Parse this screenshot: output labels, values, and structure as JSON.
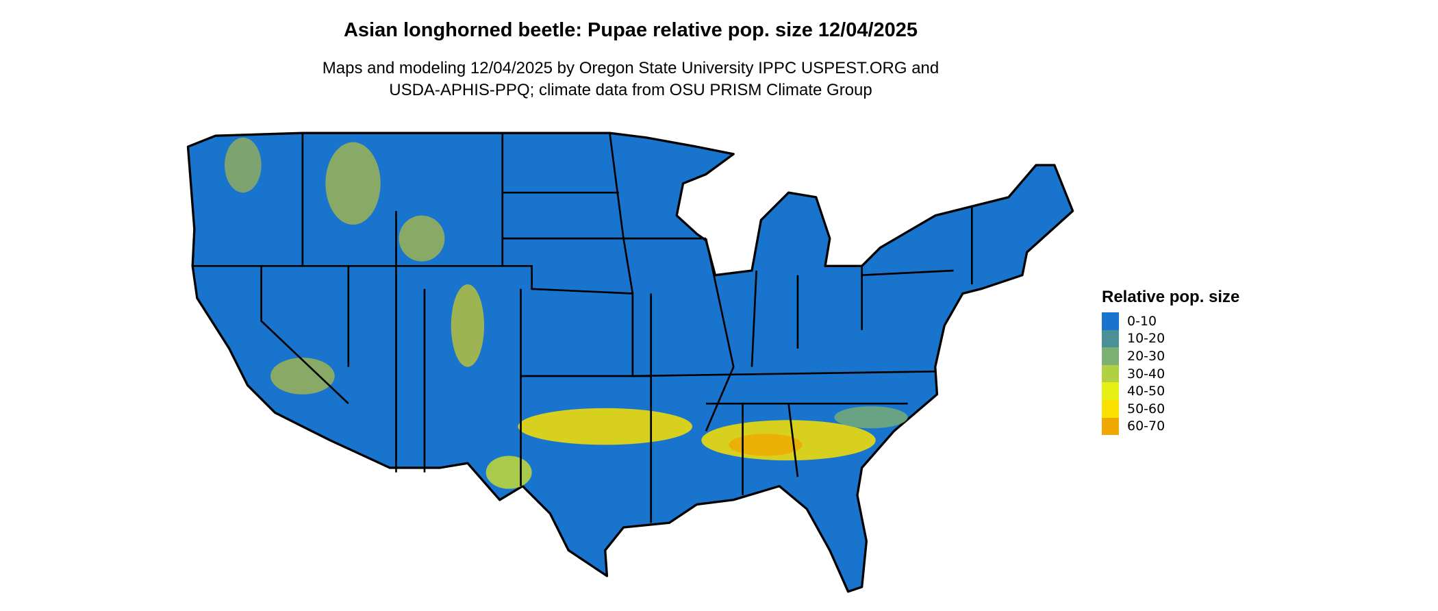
{
  "title": "Asian longhorned beetle: Pupae relative pop. size 12/04/2025",
  "subtitle_line1": "Maps and modeling 12/04/2025 by Oregon State University IPPC USPEST.ORG and",
  "subtitle_line2": "USDA-APHIS-PPQ; climate data from OSU PRISM Climate Group",
  "legend": {
    "title": "Relative pop. size",
    "items": [
      {
        "label": "0-10",
        "color": "#1874CD"
      },
      {
        "label": "10-20",
        "color": "#4A9099"
      },
      {
        "label": "20-30",
        "color": "#7DB072"
      },
      {
        "label": "30-40",
        "color": "#B2D142"
      },
      {
        "label": "40-50",
        "color": "#E8EF14"
      },
      {
        "label": "50-60",
        "color": "#F9E000"
      },
      {
        "label": "60-70",
        "color": "#F0A800"
      }
    ]
  },
  "map": {
    "region": "Contiguous United States",
    "base_color": "#1874CD",
    "border_color": "#000000"
  }
}
